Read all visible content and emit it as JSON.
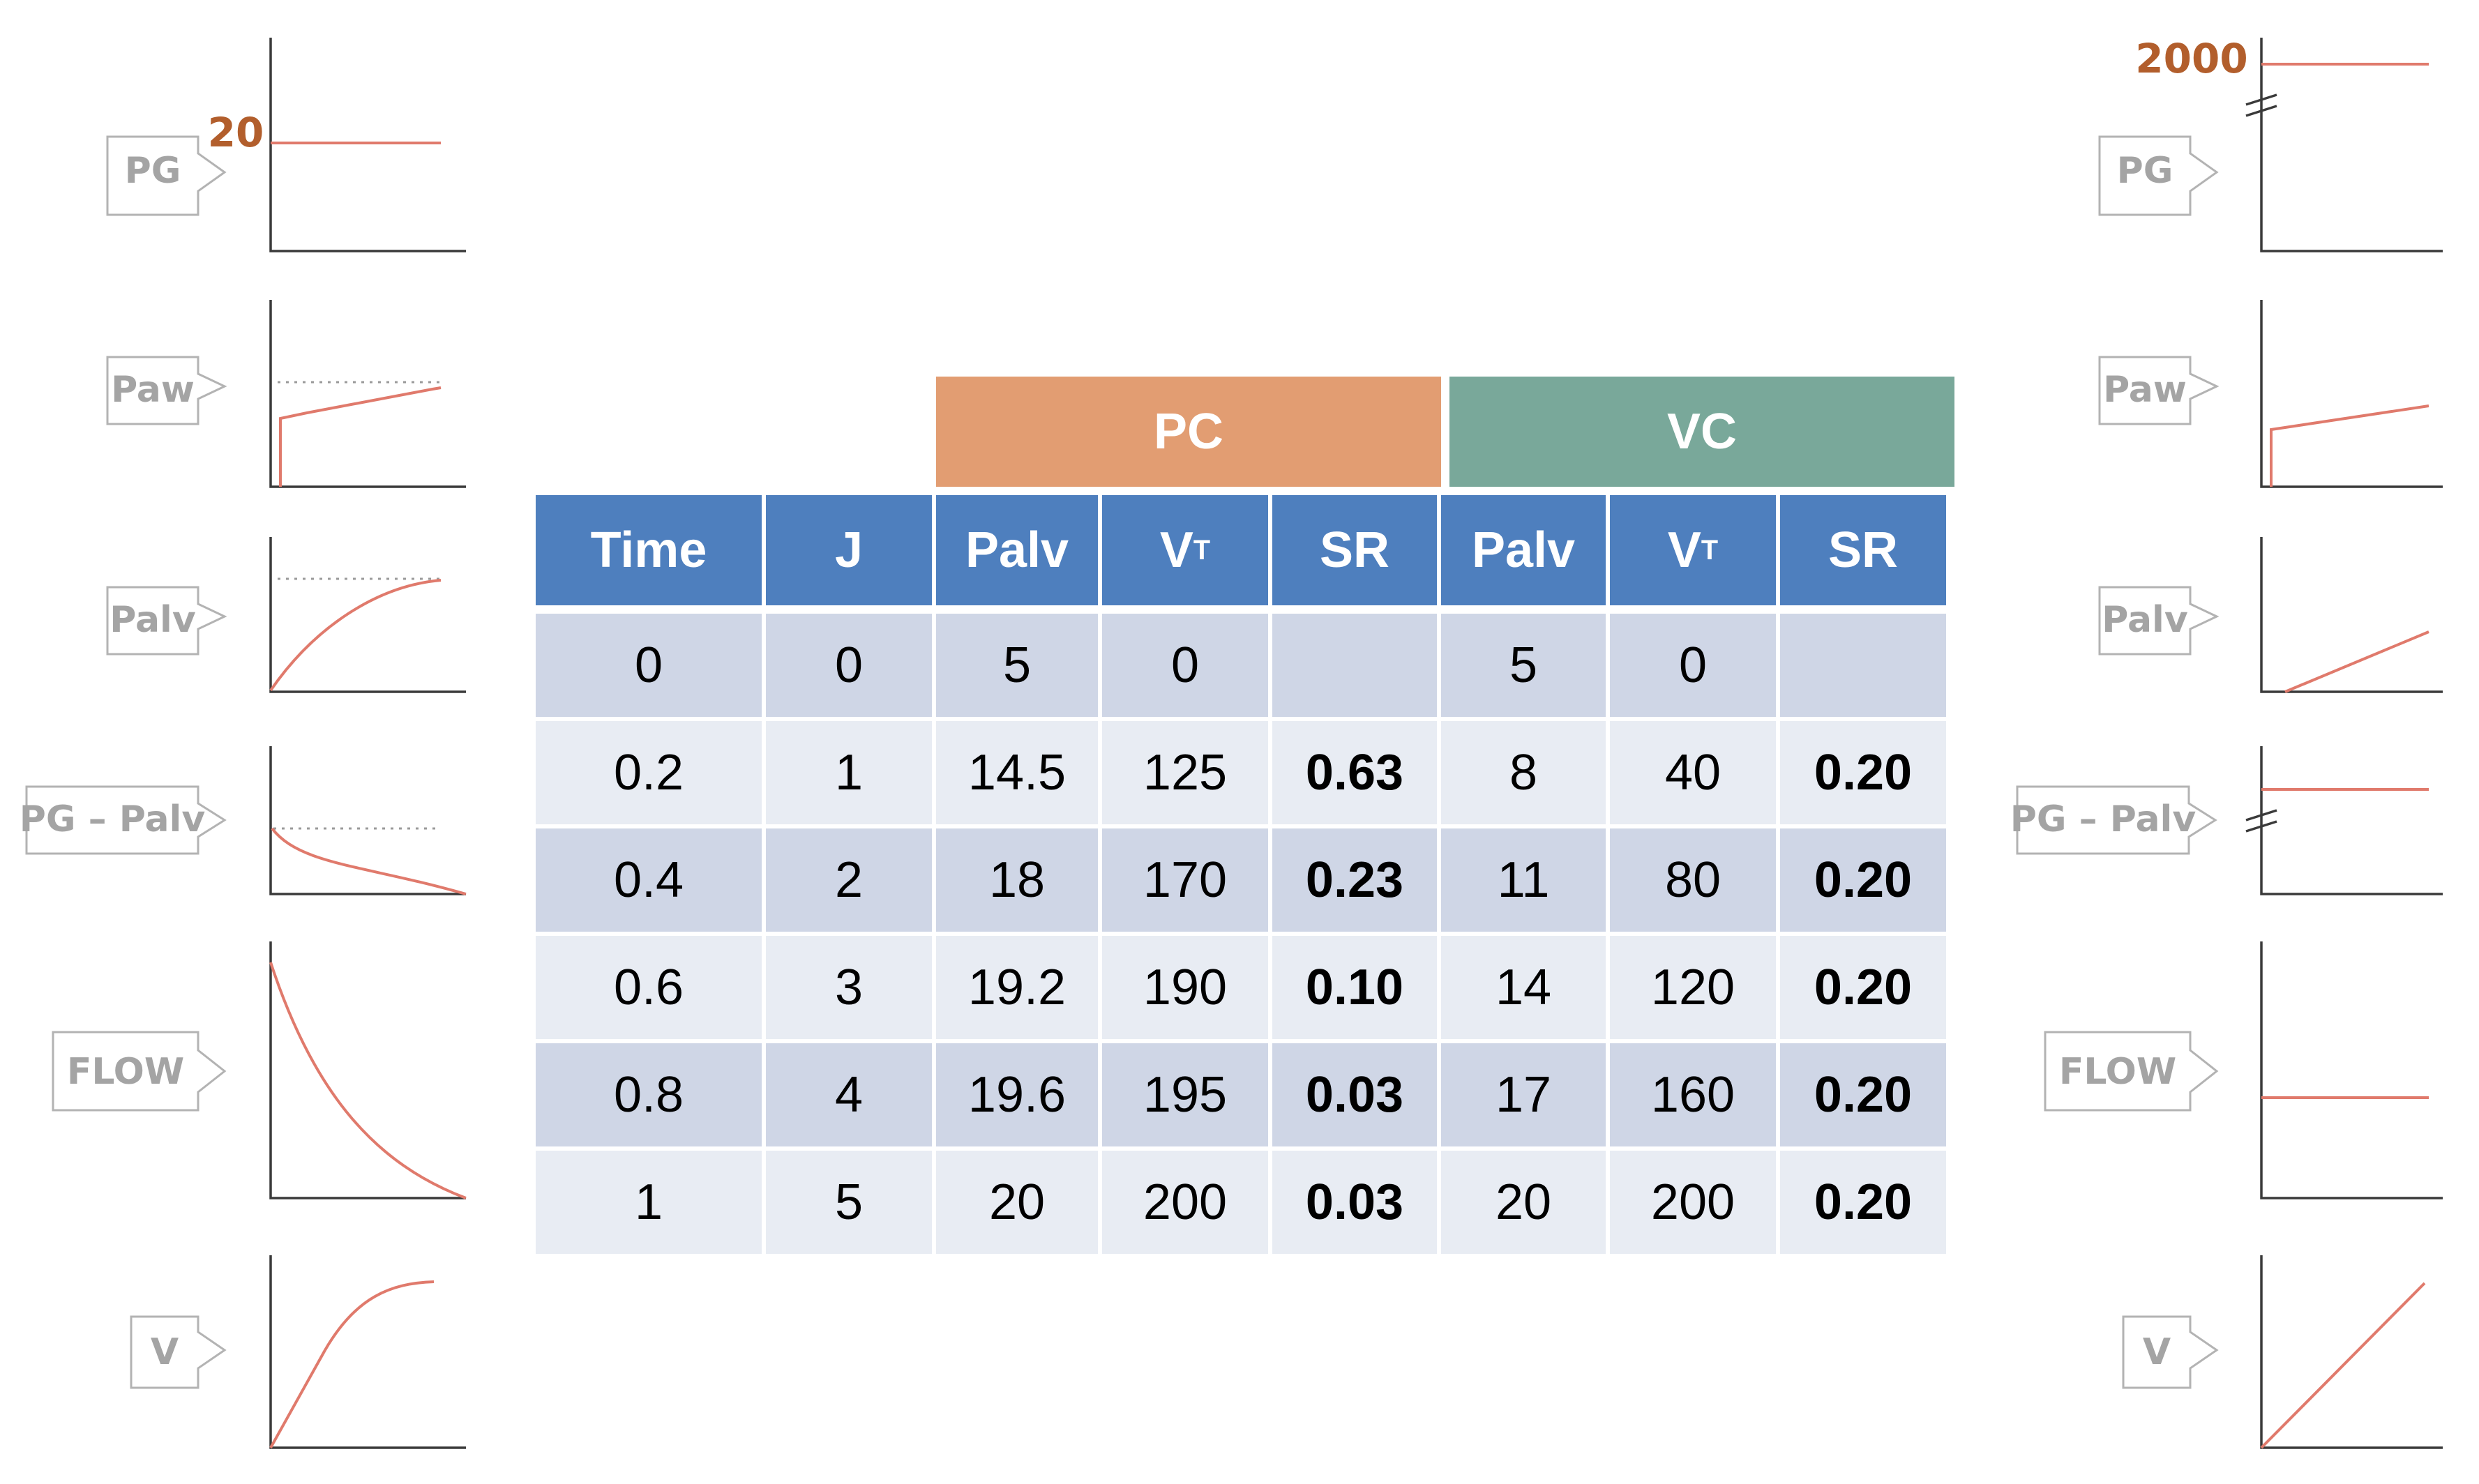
{
  "table": {
    "groups": {
      "pc": "PC",
      "vc": "VC"
    },
    "headers": [
      "Time",
      "J",
      "Palv",
      "VT",
      "SR",
      "Palv",
      "VT",
      "SR"
    ],
    "rows": [
      [
        "0",
        "0",
        "5",
        "0",
        "",
        "5",
        "0",
        ""
      ],
      [
        "0.2",
        "1",
        "14.5",
        "125",
        "0.63",
        "8",
        "40",
        "0.20"
      ],
      [
        "0.4",
        "2",
        "18",
        "170",
        "0.23",
        "11",
        "80",
        "0.20"
      ],
      [
        "0.6",
        "3",
        "19.2",
        "190",
        "0.10",
        "14",
        "120",
        "0.20"
      ],
      [
        "0.8",
        "4",
        "19.6",
        "195",
        "0.03",
        "17",
        "160",
        "0.20"
      ],
      [
        "1",
        "5",
        "20",
        "200",
        "0.03",
        "20",
        "200",
        "0.20"
      ]
    ]
  },
  "left_panels": {
    "pg_value": "20",
    "tags": [
      "PG",
      "Paw",
      "Palv",
      "PG – Palv",
      "FLOW",
      "V"
    ]
  },
  "right_panels": {
    "pg_value": "2000",
    "tags": [
      "PG",
      "Paw",
      "Palv",
      "PG – Palv",
      "FLOW",
      "V"
    ]
  },
  "colors": {
    "pc_header": "#e29d72",
    "vc_header": "#79a89a",
    "column_header": "#4e7fbe",
    "row_dark": "#cfd6e6",
    "row_light": "#e8ecf3",
    "curve": "#e07a6c",
    "value_label": "#b25e2c"
  }
}
